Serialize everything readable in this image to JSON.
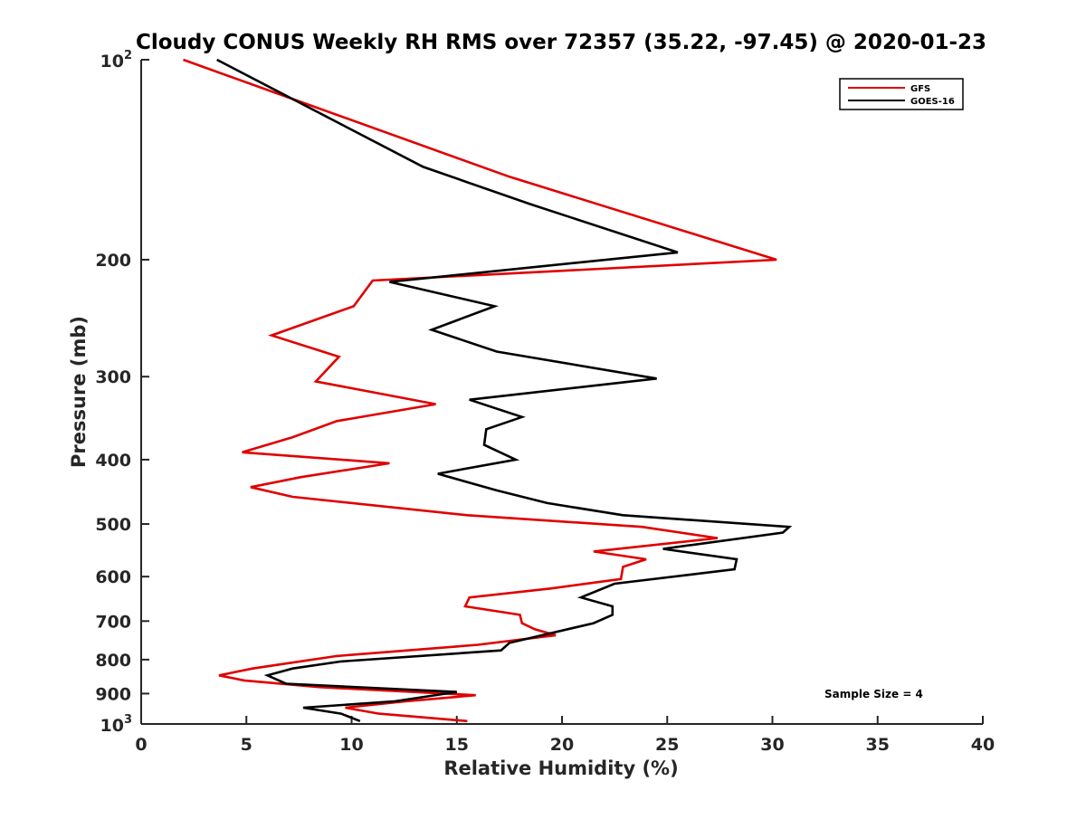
{
  "chart_data": {
    "type": "line",
    "title": "Cloudy CONUS Weekly RH RMS over 72357 (35.22, -97.45) @ 2020-01-23",
    "xlabel": "Relative Humidity (%)",
    "ylabel": "Pressure (mb)",
    "xlim": [
      0,
      40
    ],
    "ylim": [
      100,
      1000
    ],
    "y_scale": "log",
    "y_reversed": true,
    "x_ticks": [
      "0",
      "5",
      "10",
      "15",
      "20",
      "25",
      "30",
      "35",
      "40"
    ],
    "y_ticks": [
      {
        "value": 100,
        "base": "10",
        "exp": "2"
      },
      {
        "value": 200,
        "label": "200"
      },
      {
        "value": 300,
        "label": "300"
      },
      {
        "value": 400,
        "label": "400"
      },
      {
        "value": 500,
        "label": "500"
      },
      {
        "value": 600,
        "label": "600"
      },
      {
        "value": 700,
        "label": "700"
      },
      {
        "value": 800,
        "label": "800"
      },
      {
        "value": 900,
        "label": "900"
      },
      {
        "value": 1000,
        "base": "10",
        "exp": "3"
      }
    ],
    "grid": false,
    "legend_position": "top-right",
    "annotation": "Sample Size = 4",
    "series": [
      {
        "name": "GFS",
        "color": "#e00000",
        "points": [
          [
            2.0,
            100
          ],
          [
            17.5,
            150
          ],
          [
            30.2,
            200
          ],
          [
            11.0,
            215
          ],
          [
            10.1,
            235
          ],
          [
            6.2,
            260
          ],
          [
            9.4,
            280
          ],
          [
            8.3,
            305
          ],
          [
            14.0,
            330
          ],
          [
            9.3,
            350
          ],
          [
            7.2,
            370
          ],
          [
            4.8,
            390
          ],
          [
            11.8,
            405
          ],
          [
            7.6,
            425
          ],
          [
            5.2,
            440
          ],
          [
            7.2,
            455
          ],
          [
            15.5,
            485
          ],
          [
            23.8,
            505
          ],
          [
            27.4,
            525
          ],
          [
            21.5,
            550
          ],
          [
            24.0,
            565
          ],
          [
            22.9,
            580
          ],
          [
            22.8,
            605
          ],
          [
            19.5,
            625
          ],
          [
            15.6,
            645
          ],
          [
            15.4,
            665
          ],
          [
            18.0,
            685
          ],
          [
            18.1,
            705
          ],
          [
            18.7,
            720
          ],
          [
            19.7,
            735
          ],
          [
            16.0,
            760
          ],
          [
            9.3,
            790
          ],
          [
            7.0,
            810
          ],
          [
            5.3,
            825
          ],
          [
            3.7,
            845
          ],
          [
            4.9,
            860
          ],
          [
            8.5,
            880
          ],
          [
            15.9,
            905
          ],
          [
            12.5,
            925
          ],
          [
            9.7,
            945
          ],
          [
            11.3,
            965
          ],
          [
            15.5,
            990
          ]
        ]
      },
      {
        "name": "GOES-16",
        "color": "#000000",
        "points": [
          [
            3.6,
            100
          ],
          [
            13.4,
            145
          ],
          [
            18.5,
            165
          ],
          [
            25.5,
            195
          ],
          [
            11.8,
            216
          ],
          [
            16.8,
            235
          ],
          [
            13.8,
            255
          ],
          [
            16.9,
            275
          ],
          [
            24.5,
            302
          ],
          [
            15.6,
            325
          ],
          [
            18.1,
            345
          ],
          [
            16.4,
            360
          ],
          [
            16.3,
            380
          ],
          [
            17.8,
            400
          ],
          [
            14.1,
            420
          ],
          [
            16.9,
            445
          ],
          [
            19.3,
            465
          ],
          [
            22.9,
            485
          ],
          [
            30.8,
            505
          ],
          [
            30.5,
            515
          ],
          [
            24.8,
            545
          ],
          [
            28.3,
            565
          ],
          [
            28.2,
            585
          ],
          [
            22.5,
            615
          ],
          [
            20.9,
            645
          ],
          [
            22.4,
            665
          ],
          [
            22.4,
            685
          ],
          [
            21.5,
            705
          ],
          [
            17.5,
            755
          ],
          [
            17.1,
            775
          ],
          [
            9.5,
            805
          ],
          [
            7.2,
            825
          ],
          [
            6.0,
            845
          ],
          [
            6.9,
            870
          ],
          [
            15.0,
            895
          ],
          [
            12.0,
            925
          ],
          [
            7.7,
            945
          ],
          [
            9.5,
            965
          ],
          [
            10.4,
            990
          ]
        ]
      }
    ]
  }
}
